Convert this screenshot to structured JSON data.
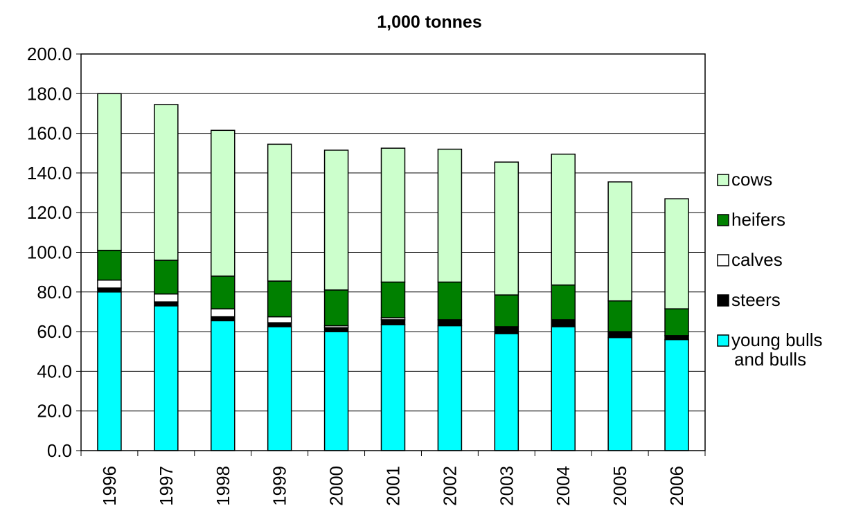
{
  "chart_data": {
    "type": "bar",
    "stacked": true,
    "title": "1,000 tonnes",
    "xlabel": "",
    "ylabel": "",
    "ylim": [
      0,
      200
    ],
    "ytick_step": 20,
    "y_tick_labels": [
      "0.0",
      "20.0",
      "40.0",
      "60.0",
      "80.0",
      "100.0",
      "120.0",
      "140.0",
      "160.0",
      "180.0",
      "200.0"
    ],
    "grid": true,
    "legend_position": "right",
    "categories": [
      "1996",
      "1997",
      "1998",
      "1999",
      "2000",
      "2001",
      "2002",
      "2003",
      "2004",
      "2005",
      "2006"
    ],
    "series": [
      {
        "name": "young bulls and bulls",
        "label_lines": [
          "young bulls",
          "and bulls"
        ],
        "color": "#00FFFF",
        "values": [
          80.0,
          73.0,
          65.5,
          62.5,
          60.0,
          63.5,
          63.0,
          59.0,
          62.5,
          57.0,
          56.0
        ]
      },
      {
        "name": "steers",
        "label_lines": [
          "steers"
        ],
        "color": "#000000",
        "values": [
          2.0,
          2.0,
          2.0,
          2.0,
          2.0,
          2.5,
          3.0,
          3.5,
          3.5,
          3.0,
          2.0
        ]
      },
      {
        "name": "calves",
        "label_lines": [
          "calves"
        ],
        "color": "#FFFFFF",
        "values": [
          4.0,
          4.0,
          4.0,
          3.0,
          1.0,
          1.0,
          0.0,
          0.0,
          0.0,
          0.0,
          0.0
        ]
      },
      {
        "name": "heifers",
        "label_lines": [
          "heifers"
        ],
        "color": "#008000",
        "values": [
          15.0,
          17.0,
          16.5,
          18.0,
          18.0,
          18.0,
          19.0,
          16.0,
          17.5,
          15.5,
          13.5
        ]
      },
      {
        "name": "cows",
        "label_lines": [
          "cows"
        ],
        "color": "#CCFFCC",
        "values": [
          79.0,
          78.5,
          73.5,
          69.0,
          70.5,
          67.5,
          67.0,
          67.0,
          66.0,
          60.0,
          55.5
        ]
      }
    ]
  }
}
